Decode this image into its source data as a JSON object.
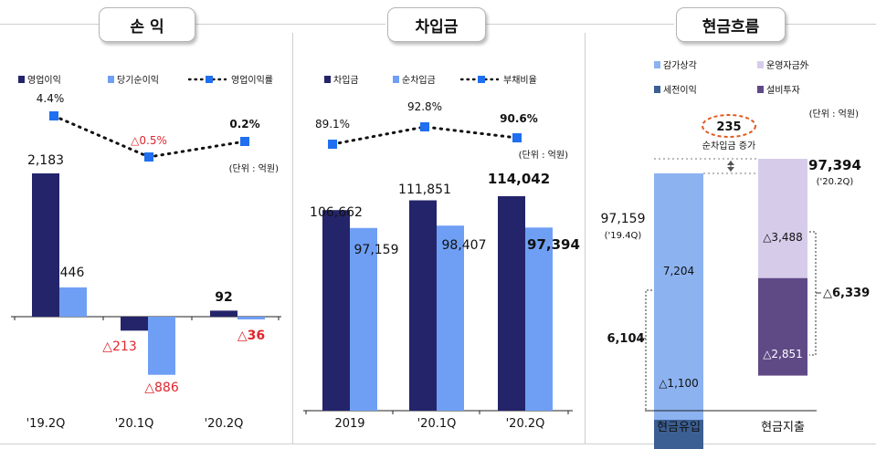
{
  "headers": {
    "pnl": "손 익",
    "debt": "차입금",
    "cf": "현금흐름"
  },
  "colors": {
    "navy": "#24246a",
    "blue": "#6f9ff5",
    "red": "#e0262e",
    "dot": "#1f6ff0",
    "light_lav": "#d6ccea",
    "purple": "#5f4a86",
    "steel": "#3b5f93",
    "cf_blue": "#8cb2f0",
    "orange": "#e05a1e"
  },
  "unit": "(단위 : 억원)",
  "chart_data": [
    {
      "type": "bar",
      "title": "손 익",
      "categories": [
        "'19.2Q",
        "'20.1Q",
        "'20.2Q"
      ],
      "series": [
        {
          "name": "영업이익",
          "values": [
            2183,
            -213,
            92
          ],
          "labels": [
            "2,183",
            "△213",
            "92"
          ]
        },
        {
          "name": "당기순이익",
          "values": [
            446,
            -886,
            -36
          ],
          "labels": [
            "446",
            "△886",
            "△36"
          ]
        }
      ],
      "line_series": {
        "name": "영업이익률",
        "values": [
          4.4,
          -0.5,
          0.2
        ],
        "labels": [
          "4.4%",
          "△0.5%",
          "0.2%"
        ]
      }
    },
    {
      "type": "bar",
      "title": "차입금",
      "categories": [
        "2019",
        "'20.1Q",
        "'20.2Q"
      ],
      "series": [
        {
          "name": "차입금",
          "values": [
            106662,
            111851,
            114042
          ],
          "labels": [
            "106,662",
            "111,851",
            "114,042"
          ]
        },
        {
          "name": "순차입금",
          "values": [
            97159,
            98407,
            97394
          ],
          "labels": [
            "97,159",
            "98,407",
            "97,394"
          ]
        }
      ],
      "line_series": {
        "name": "부채비율",
        "values": [
          89.1,
          92.8,
          90.6
        ],
        "labels": [
          "89.1%",
          "92.8%",
          "90.6%"
        ]
      }
    },
    {
      "type": "bar",
      "title": "현금흐름",
      "categories": [
        "현금유입",
        "현금지출"
      ],
      "legend": [
        "감가상각",
        "운영자금外",
        "세전이익",
        "설비투자"
      ],
      "inflow": {
        "segments": [
          {
            "name": "세전이익",
            "value": -1100,
            "label": "△1,100"
          },
          {
            "name": "감가상각",
            "value": 7204,
            "label": "7,204"
          }
        ],
        "total_label": "6,104",
        "start_label": "97,159",
        "start_period": "('19.4Q)"
      },
      "outflow": {
        "segments": [
          {
            "name": "설비투자",
            "value": -2851,
            "label": "△2,851"
          },
          {
            "name": "운영자금外",
            "value": -3488,
            "label": "△3,488"
          }
        ],
        "total_label": "△6,339",
        "end_label": "97,394",
        "end_period": "('20.2Q)"
      },
      "annotation": {
        "value": "235",
        "text": "순차입금 증가"
      }
    }
  ]
}
